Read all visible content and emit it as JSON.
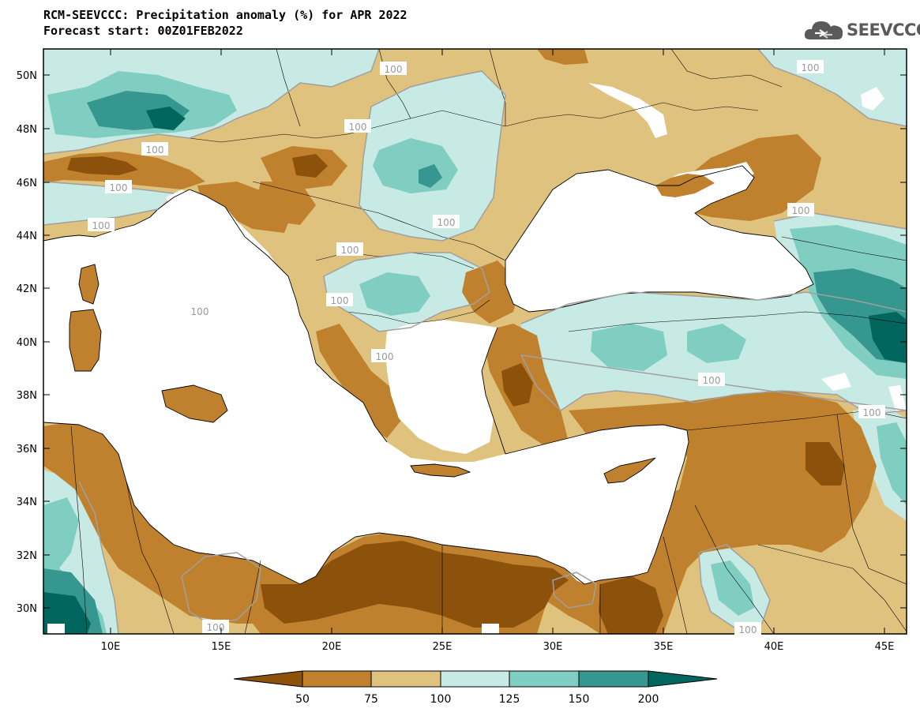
{
  "header": {
    "title": "RCM-SEEVCCC: Precipitation anomaly (%) for APR 2022",
    "subtitle": "Forecast start: 00Z01FEB2022"
  },
  "logo": {
    "text": "SEEVCCC",
    "icon": "cloud-icon"
  },
  "map": {
    "lon_range": [
      7,
      46
    ],
    "lat_range": [
      29,
      51
    ],
    "lat_ticks": [
      "50N",
      "48N",
      "46N",
      "44N",
      "42N",
      "40N",
      "38N",
      "36N",
      "34N",
      "32N",
      "30N"
    ],
    "lon_ticks": [
      "10E",
      "15E",
      "20E",
      "25E",
      "30E",
      "35E",
      "40E",
      "45E"
    ],
    "contour_labels": [
      "100",
      "100",
      "100",
      "100",
      "100",
      "100",
      "100",
      "100",
      "100",
      "100",
      "100",
      "100",
      "100",
      "100"
    ],
    "colors": {
      "lt50": "#8c510a",
      "50_75": "#bf812d",
      "75_100": "#dfc27d",
      "100_125": "#c7eae5",
      "125_150": "#80cdc1",
      "150_200": "#35978f",
      "gt200": "#01665e",
      "sea": "#ffffff"
    }
  },
  "colorbar": {
    "labels": [
      "50",
      "75",
      "100",
      "125",
      "150",
      "200"
    ],
    "colors": [
      "#8c510a",
      "#bf812d",
      "#dfc27d",
      "#c7eae5",
      "#80cdc1",
      "#35978f",
      "#01665e"
    ]
  }
}
